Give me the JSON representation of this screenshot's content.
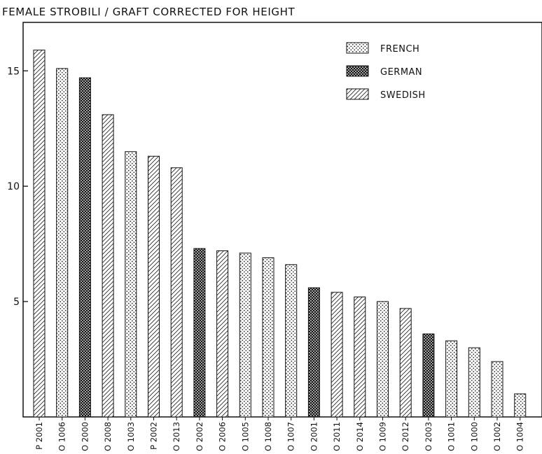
{
  "chart_data": {
    "type": "bar",
    "title": "FEMALE STROBILI / GRAFT CORRECTED FOR HEIGHT",
    "xlabel": "",
    "ylabel": "",
    "ylim": [
      0,
      17.1
    ],
    "yticks": [
      5,
      10,
      15
    ],
    "grid": false,
    "legend_position": "top-right",
    "legend": [
      {
        "name": "FRENCH",
        "pattern": "dots"
      },
      {
        "name": "GERMAN",
        "pattern": "crosshatch"
      },
      {
        "name": "SWEDISH",
        "pattern": "hatch"
      }
    ],
    "bars": [
      {
        "label": "P 2001",
        "value": 15.9,
        "group": "SWEDISH"
      },
      {
        "label": "O 1006",
        "value": 15.1,
        "group": "FRENCH"
      },
      {
        "label": "O 2000",
        "value": 14.7,
        "group": "GERMAN"
      },
      {
        "label": "O 2008",
        "value": 13.1,
        "group": "SWEDISH"
      },
      {
        "label": "O 1003",
        "value": 11.5,
        "group": "FRENCH"
      },
      {
        "label": "P 2002",
        "value": 11.3,
        "group": "SWEDISH"
      },
      {
        "label": "O 2013",
        "value": 10.8,
        "group": "SWEDISH"
      },
      {
        "label": "O 2002",
        "value": 7.3,
        "group": "GERMAN"
      },
      {
        "label": "O 2006",
        "value": 7.2,
        "group": "SWEDISH"
      },
      {
        "label": "O 1005",
        "value": 7.1,
        "group": "FRENCH"
      },
      {
        "label": "O 1008",
        "value": 6.9,
        "group": "FRENCH"
      },
      {
        "label": "O 1007",
        "value": 6.6,
        "group": "FRENCH"
      },
      {
        "label": "O 2001",
        "value": 5.6,
        "group": "GERMAN"
      },
      {
        "label": "O 2011",
        "value": 5.4,
        "group": "SWEDISH"
      },
      {
        "label": "O 2014",
        "value": 5.2,
        "group": "SWEDISH"
      },
      {
        "label": "O 1009",
        "value": 5.0,
        "group": "FRENCH"
      },
      {
        "label": "O 2012",
        "value": 4.7,
        "group": "SWEDISH"
      },
      {
        "label": "O 2003",
        "value": 3.6,
        "group": "GERMAN"
      },
      {
        "label": "O 1001",
        "value": 3.3,
        "group": "FRENCH"
      },
      {
        "label": "O 1000",
        "value": 3.0,
        "group": "FRENCH"
      },
      {
        "label": "O 1002",
        "value": 2.4,
        "group": "FRENCH"
      },
      {
        "label": "O 1004",
        "value": 1.0,
        "group": "FRENCH"
      }
    ]
  }
}
